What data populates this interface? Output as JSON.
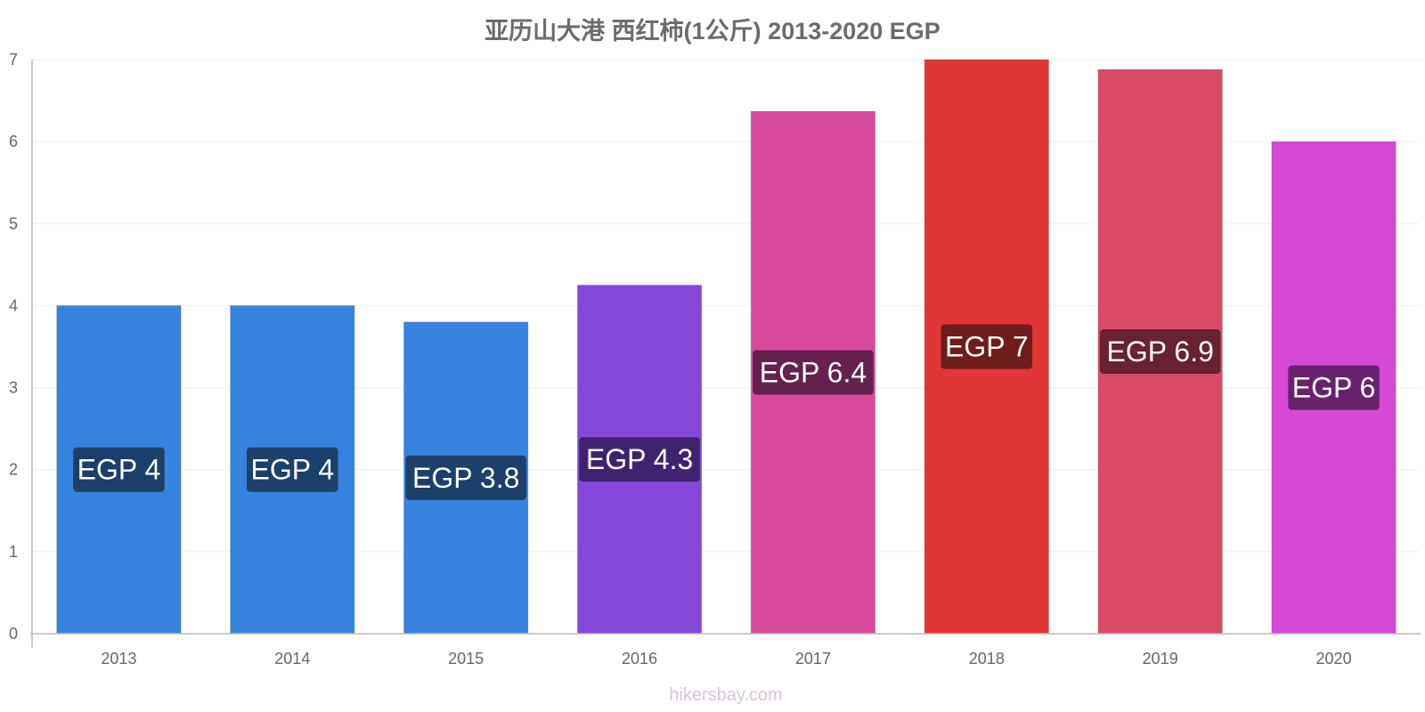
{
  "chart_data": {
    "type": "bar",
    "title": "亚历山大港 西红柿(1公斤) 2013-2020 EGP",
    "categories": [
      "2013",
      "2014",
      "2015",
      "2016",
      "2017",
      "2018",
      "2019",
      "2020"
    ],
    "values": [
      4.0,
      4.0,
      3.8,
      4.25,
      6.37,
      7.0,
      6.88,
      6.0
    ],
    "data_labels": [
      "EGP 4",
      "EGP 4",
      "EGP 3.8",
      "EGP 4.3",
      "EGP 6.4",
      "EGP 7",
      "EGP 6.9",
      "EGP 6"
    ],
    "ylim": [
      0,
      7
    ],
    "yticks": [
      "0",
      "1",
      "2",
      "3",
      "4",
      "5",
      "6",
      "7"
    ],
    "xlabel": "",
    "ylabel": "",
    "grid": true,
    "legend": "none",
    "colors": [
      "#3684e0",
      "#3684e0",
      "#3684e0",
      "#8449da",
      "#d84a9c",
      "#e23535",
      "#d94b66",
      "#d648d6"
    ],
    "label_colors": [
      "#1c3f6b",
      "#1c3f6b",
      "#1c3f6b",
      "#3f2270",
      "#66214e",
      "#6e1c1c",
      "#6a2131",
      "#6b2170"
    ]
  },
  "watermark": "hikersbay.com"
}
